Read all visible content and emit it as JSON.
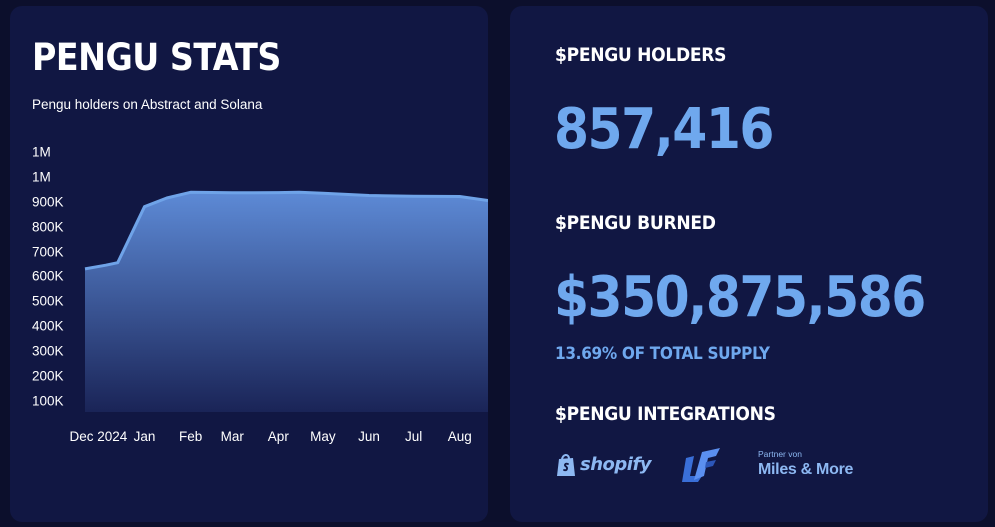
{
  "stats_card": {
    "title": "PENGU STATS",
    "subtitle": "Pengu holders on Abstract and Solana"
  },
  "chart_data": {
    "type": "area",
    "title": "PENGU STATS",
    "subtitle": "Pengu holders on Abstract and Solana",
    "x": [
      "2024-11-22",
      "2024-12-06",
      "2024-12-14",
      "2025-01-01",
      "2025-01-16",
      "2025-02-01",
      "2025-03-01",
      "2025-04-01",
      "2025-04-15",
      "2025-05-01",
      "2025-06-01",
      "2025-07-01",
      "2025-08-01",
      "2025-08-20"
    ],
    "y": [
      630000,
      645000,
      655000,
      880000,
      915000,
      938000,
      936000,
      937000,
      938000,
      934000,
      925000,
      922000,
      921000,
      905000
    ],
    "ytick_labels": [
      "1M",
      "1M",
      "900K",
      "800K",
      "700K",
      "600K",
      "500K",
      "400K",
      "300K",
      "200K",
      "100K"
    ],
    "ytick_values": [
      1100000,
      1000000,
      900000,
      800000,
      700000,
      600000,
      500000,
      400000,
      300000,
      200000,
      100000
    ],
    "xtick_labels": [
      "Dec 2024",
      "Jan",
      "Feb",
      "Mar",
      "Apr",
      "May",
      "Jun",
      "Jul",
      "Aug"
    ],
    "xtick_dates": [
      "2024-12-01",
      "2025-01-01",
      "2025-02-01",
      "2025-03-01",
      "2025-04-01",
      "2025-05-01",
      "2025-06-01",
      "2025-07-01",
      "2025-08-01"
    ],
    "ylim": [
      55000,
      1100000
    ],
    "grid": false,
    "colors": {
      "line": "#6fa3e8",
      "fill_top": "#5d8ad6",
      "fill_bottom": "#1a2457"
    }
  },
  "holders": {
    "heading": "$PENGU HOLDERS",
    "value": "857,416"
  },
  "burned": {
    "heading": "$PENGU BURNED",
    "value": "$350,875,586",
    "supply_note": "13.69% OF TOTAL SUPPLY"
  },
  "integrations": {
    "heading": "$PENGU INTEGRATIONS",
    "logos": [
      {
        "name": "shopify",
        "text": "shopify",
        "icon": "shopify-bag-icon"
      },
      {
        "name": "lf-logo",
        "icon": "lf-mark-icon"
      },
      {
        "name": "miles-and-more",
        "small_text": "Partner von",
        "text": "Miles & More"
      }
    ]
  },
  "colors": {
    "page_bg": "#0c0f2c",
    "card_bg": "#111743",
    "accent": "#6fa8ee",
    "text": "#ffffff"
  }
}
